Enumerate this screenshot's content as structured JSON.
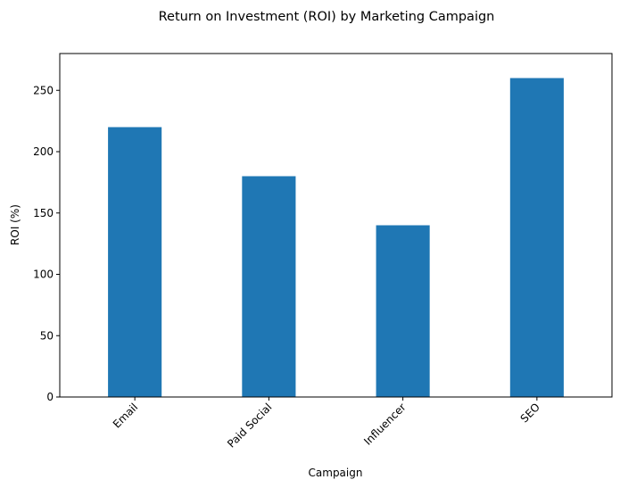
{
  "chart_data": {
    "type": "bar",
    "title": "Return on Investment (ROI) by Marketing Campaign",
    "xlabel": "Campaign",
    "ylabel": "ROI (%)",
    "categories": [
      "Email",
      "Paid Social",
      "Influencer",
      "SEO"
    ],
    "values": [
      220,
      180,
      140,
      260
    ],
    "ylim": [
      0,
      280
    ],
    "yticks": [
      0,
      50,
      100,
      150,
      200,
      250
    ],
    "grid": false,
    "bar_color": "#1f77b4",
    "xtick_rotation_deg": 45
  }
}
